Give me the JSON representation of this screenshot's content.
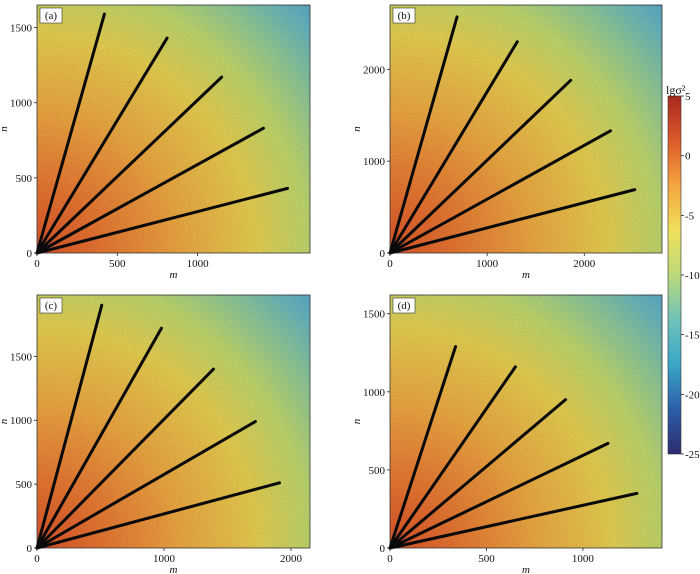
{
  "chart_data": [
    {
      "panel": "(a)",
      "type": "heatmap",
      "xlabel": "m",
      "ylabel": "n",
      "xlim": [
        0,
        1700
      ],
      "ylim": [
        0,
        1650
      ],
      "xticks": [
        0,
        500,
        1000
      ],
      "yticks": [
        0,
        500,
        1000,
        1500
      ],
      "lines": [
        {
          "x": [
            0,
            420
          ],
          "y": [
            0,
            1590
          ]
        },
        {
          "x": [
            0,
            810
          ],
          "y": [
            0,
            1430
          ]
        },
        {
          "x": [
            0,
            1150
          ],
          "y": [
            0,
            1170
          ]
        },
        {
          "x": [
            0,
            1410
          ],
          "y": [
            0,
            830
          ]
        },
        {
          "x": [
            0,
            1560
          ],
          "y": [
            0,
            430
          ]
        }
      ]
    },
    {
      "panel": "(b)",
      "type": "heatmap",
      "xlabel": "m",
      "ylabel": "n",
      "xlim": [
        0,
        2800
      ],
      "ylim": [
        0,
        2700
      ],
      "xticks": [
        0,
        1000,
        2000
      ],
      "yticks": [
        0,
        1000,
        2000
      ],
      "lines": [
        {
          "x": [
            0,
            690
          ],
          "y": [
            0,
            2570
          ]
        },
        {
          "x": [
            0,
            1310
          ],
          "y": [
            0,
            2300
          ]
        },
        {
          "x": [
            0,
            1860
          ],
          "y": [
            0,
            1880
          ]
        },
        {
          "x": [
            0,
            2270
          ],
          "y": [
            0,
            1330
          ]
        },
        {
          "x": [
            0,
            2520
          ],
          "y": [
            0,
            690
          ]
        }
      ]
    },
    {
      "panel": "(c)",
      "type": "heatmap",
      "xlabel": "m",
      "ylabel": "n",
      "xlim": [
        0,
        2150
      ],
      "ylim": [
        0,
        1980
      ],
      "xticks": [
        0,
        1000,
        2000
      ],
      "yticks": [
        0,
        500,
        1000,
        1500
      ],
      "lines": [
        {
          "x": [
            0,
            510
          ],
          "y": [
            0,
            1900
          ]
        },
        {
          "x": [
            0,
            980
          ],
          "y": [
            0,
            1720
          ]
        },
        {
          "x": [
            0,
            1390
          ],
          "y": [
            0,
            1400
          ]
        },
        {
          "x": [
            0,
            1720
          ],
          "y": [
            0,
            990
          ]
        },
        {
          "x": [
            0,
            1910
          ],
          "y": [
            0,
            510
          ]
        }
      ]
    },
    {
      "panel": "(d)",
      "type": "heatmap",
      "xlabel": "m",
      "ylabel": "n",
      "xlim": [
        0,
        1410
      ],
      "ylim": [
        0,
        1620
      ],
      "xticks": [
        0,
        500,
        1000
      ],
      "yticks": [
        0,
        500,
        1000,
        1500
      ],
      "lines": [
        {
          "x": [
            0,
            340
          ],
          "y": [
            0,
            1290
          ]
        },
        {
          "x": [
            0,
            650
          ],
          "y": [
            0,
            1160
          ]
        },
        {
          "x": [
            0,
            910
          ],
          "y": [
            0,
            950
          ]
        },
        {
          "x": [
            0,
            1130
          ],
          "y": [
            0,
            670
          ]
        },
        {
          "x": [
            0,
            1280
          ],
          "y": [
            0,
            350
          ]
        }
      ]
    }
  ],
  "colorbar": {
    "title": "lgσ²",
    "min": -25,
    "max": 5,
    "ticks": [
      5,
      0,
      -5,
      -10,
      -15,
      -20,
      -25
    ],
    "colors": [
      "#2b2c6e",
      "#2d5fa8",
      "#3aa6c8",
      "#6fc2b9",
      "#bcd97a",
      "#f1e05b",
      "#f4a640",
      "#dd5a2a",
      "#a8281f"
    ]
  }
}
